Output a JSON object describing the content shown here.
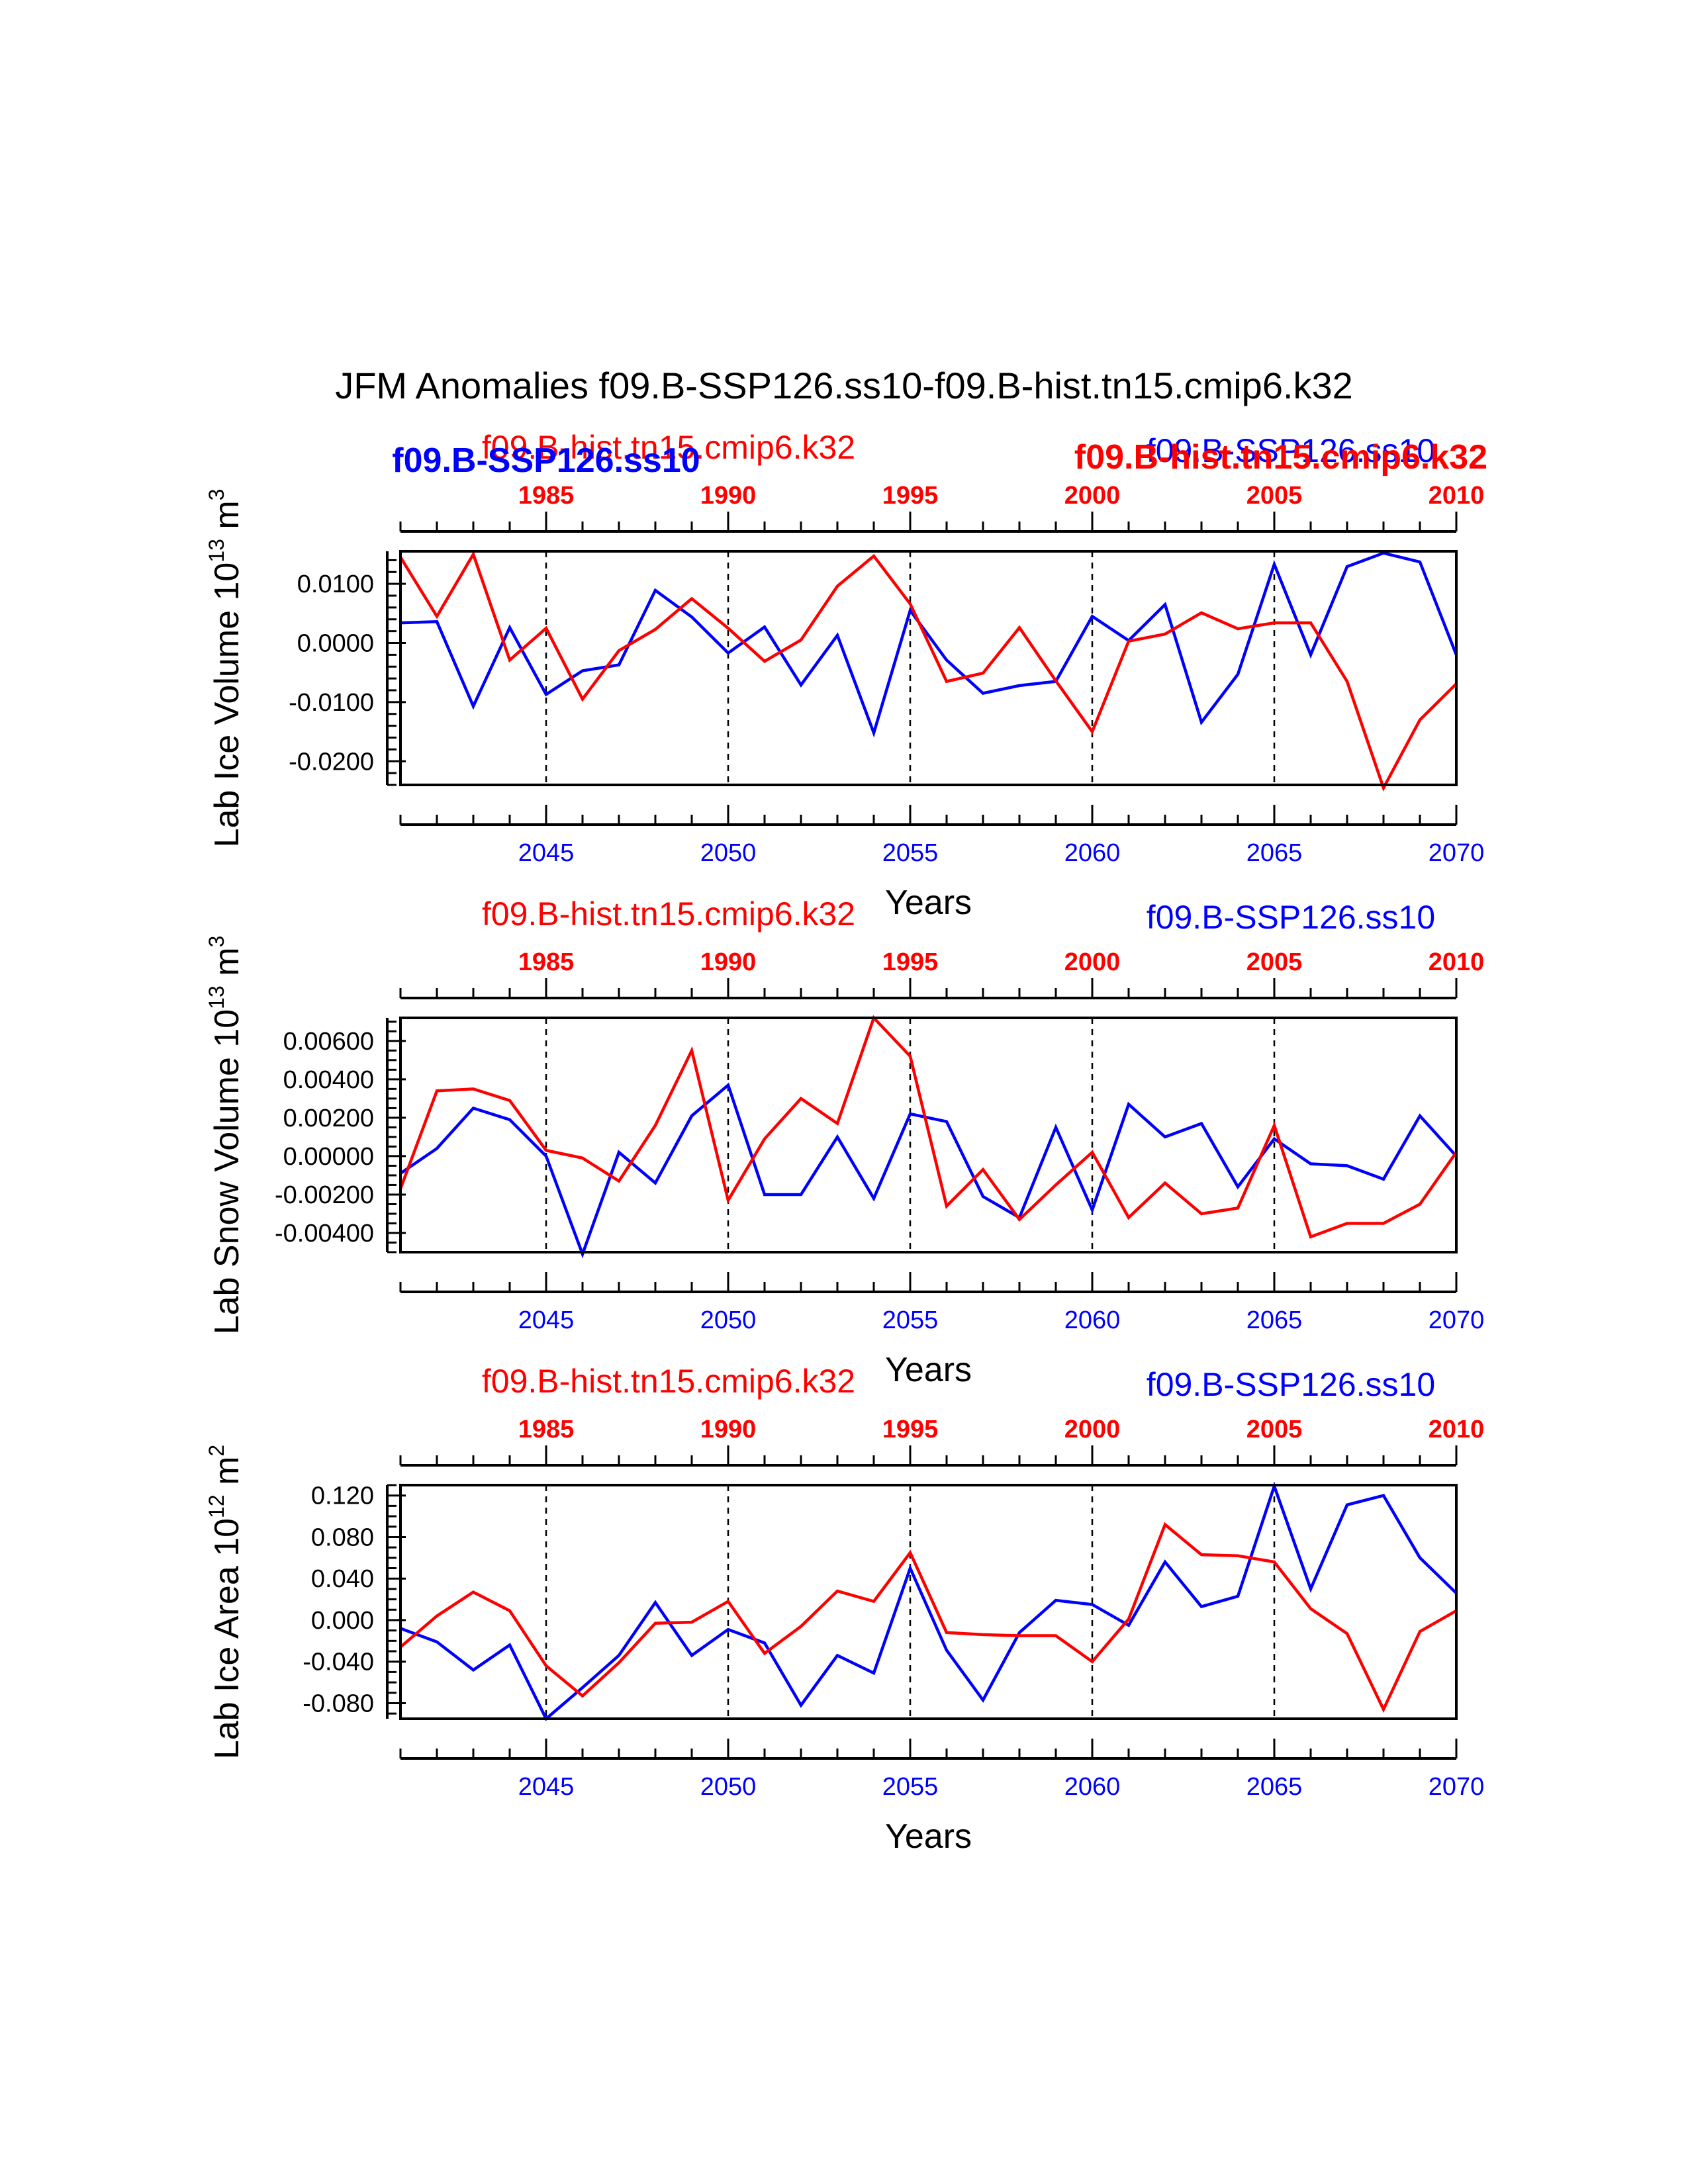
{
  "title": "JFM Anomalies f09.B-SSP126.ss10-f09.B-hist.tn15.cmip6.k32",
  "colors": {
    "blue_run": "#0000ff",
    "red_run": "#ff0000",
    "axes": "#000000"
  },
  "runs": {
    "blue": "f09.B-SSP126.ss10",
    "red": "f09.B-hist.tn15.cmip6.k32"
  },
  "chart_data": [
    {
      "type": "line",
      "ylabel_main": "Lab Ice Volume 10",
      "ylabel_exp": "13",
      "ylabel_unit": "m",
      "ylabel_unit_exp": "3",
      "xlabel": "Years",
      "ylim": [
        -0.024,
        0.0155
      ],
      "yticks": [
        -0.02,
        -0.01,
        0.0,
        0.01
      ],
      "ytick_labels": [
        "-0.0200",
        "-0.0100",
        "0.0000",
        "0.0100"
      ],
      "yminor": 0.002,
      "bottom_axis": {
        "range": [
          2041,
          2070
        ],
        "ticks": [
          2045,
          2050,
          2055,
          2060,
          2065,
          2070
        ]
      },
      "top_axis": {
        "range": [
          1981,
          2010
        ],
        "ticks": [
          1985,
          1990,
          1995,
          2000,
          2005,
          2010
        ]
      },
      "grid_dashed_x": [
        2045,
        2050,
        2055,
        2060,
        2065
      ],
      "legend": {
        "red_label": "f09.B-hist.tn15.cmip6.k32",
        "blue_label": "f09.B-SSP126.ss10",
        "red_bold": "f09.B-hist.tn15.cmip6.k32",
        "blue_bold": "f09.B-SSP126.ss10"
      },
      "series": [
        {
          "name": "f09.B-SSP126.ss10",
          "color": "#0000ff",
          "axis": "bottom",
          "x": [
            2041,
            2042,
            2043,
            2044,
            2045,
            2046,
            2047,
            2048,
            2049,
            2050,
            2051,
            2052,
            2053,
            2054,
            2055,
            2056,
            2057,
            2058,
            2059,
            2060,
            2061,
            2062,
            2063,
            2064,
            2065,
            2066,
            2067,
            2068,
            2069,
            2070
          ],
          "values": [
            0.0034,
            0.0036,
            -0.0107,
            0.0026,
            -0.0087,
            -0.0047,
            -0.0037,
            0.0089,
            0.0044,
            -0.0017,
            0.0027,
            -0.0071,
            0.0013,
            -0.0152,
            0.0055,
            -0.0029,
            -0.0085,
            -0.0072,
            -0.0065,
            0.0045,
            0.0004,
            0.0065,
            -0.0134,
            -0.0053,
            0.0133,
            -0.002,
            0.0129,
            0.0152,
            0.0137,
            -0.002
          ]
        },
        {
          "name": "f09.B-hist.tn15.cmip6.k32",
          "color": "#ff0000",
          "axis": "top",
          "x": [
            1981,
            1982,
            1983,
            1984,
            1985,
            1986,
            1987,
            1988,
            1989,
            1990,
            1991,
            1992,
            1993,
            1994,
            1995,
            1996,
            1997,
            1998,
            1999,
            2000,
            2001,
            2002,
            2003,
            2004,
            2005,
            2006,
            2007,
            2008,
            2009,
            2010
          ],
          "values": [
            0.0145,
            0.0045,
            0.015,
            -0.0029,
            0.0025,
            -0.0095,
            -0.0013,
            0.0023,
            0.0075,
            0.0025,
            -0.0031,
            0.0005,
            0.0096,
            0.0147,
            0.0066,
            -0.0065,
            -0.0051,
            0.0026,
            -0.0064,
            -0.015,
            0.0003,
            0.0015,
            0.0051,
            0.0024,
            0.0034,
            0.0034,
            -0.0065,
            -0.0245,
            -0.013,
            -0.0069
          ]
        }
      ]
    },
    {
      "type": "line",
      "ylabel_main": "Lab Snow Volume 10",
      "ylabel_exp": "13",
      "ylabel_unit": "m",
      "ylabel_unit_exp": "3",
      "xlabel": "Years",
      "ylim": [
        -0.005,
        0.0072
      ],
      "yticks": [
        -0.004,
        -0.002,
        0.0,
        0.002,
        0.004,
        0.006
      ],
      "ytick_labels": [
        "-0.00400",
        "-0.00200",
        "0.00000",
        "0.00200",
        "0.00400",
        "0.00600"
      ],
      "yminor": 0.0005,
      "bottom_axis": {
        "range": [
          2041,
          2070
        ],
        "ticks": [
          2045,
          2050,
          2055,
          2060,
          2065,
          2070
        ]
      },
      "top_axis": {
        "range": [
          1981,
          2010
        ],
        "ticks": [
          1985,
          1990,
          1995,
          2000,
          2005,
          2010
        ]
      },
      "grid_dashed_x": [
        2045,
        2050,
        2055,
        2060,
        2065
      ],
      "legend": {
        "red_label": "f09.B-hist.tn15.cmip6.k32",
        "blue_label": "f09.B-SSP126.ss10"
      },
      "series": [
        {
          "name": "f09.B-SSP126.ss10",
          "color": "#0000ff",
          "axis": "bottom",
          "x": [
            2041,
            2042,
            2043,
            2044,
            2045,
            2046,
            2047,
            2048,
            2049,
            2050,
            2051,
            2052,
            2053,
            2054,
            2055,
            2056,
            2057,
            2058,
            2059,
            2060,
            2061,
            2062,
            2063,
            2064,
            2065,
            2066,
            2067,
            2068,
            2069,
            2070
          ],
          "values": [
            -0.0009,
            0.0004,
            0.0025,
            0.0019,
            0.0,
            -0.0051,
            0.0002,
            -0.0014,
            0.0021,
            0.0037,
            -0.002,
            -0.002,
            0.001,
            -0.0022,
            0.0022,
            0.0018,
            -0.0021,
            -0.0032,
            0.0015,
            -0.0028,
            0.0027,
            0.001,
            0.0017,
            -0.0016,
            0.0009,
            -0.0004,
            -0.0005,
            -0.0012,
            0.0021,
            0.0
          ]
        },
        {
          "name": "f09.B-hist.tn15.cmip6.k32",
          "color": "#ff0000",
          "axis": "top",
          "x": [
            1981,
            1982,
            1983,
            1984,
            1985,
            1986,
            1987,
            1988,
            1989,
            1990,
            1991,
            1992,
            1993,
            1994,
            1995,
            1996,
            1997,
            1998,
            1999,
            2000,
            2001,
            2002,
            2003,
            2004,
            2005,
            2006,
            2007,
            2008,
            2009,
            2010
          ],
          "values": [
            -0.0017,
            0.0034,
            0.0035,
            0.0029,
            0.0003,
            -0.0001,
            -0.0013,
            0.0016,
            0.0055,
            -0.0023,
            0.0009,
            0.003,
            0.0017,
            0.0072,
            0.0052,
            -0.0026,
            -0.0007,
            -0.0033,
            -0.0015,
            0.0002,
            -0.0032,
            -0.0014,
            -0.003,
            -0.0027,
            0.0016,
            -0.0042,
            -0.0035,
            -0.0035,
            -0.0025,
            0.0002
          ]
        }
      ]
    },
    {
      "type": "line",
      "ylabel_main": "Lab Ice Area 10",
      "ylabel_exp": "12",
      "ylabel_unit": "m",
      "ylabel_unit_exp": "2",
      "xlabel": "Years",
      "ylim": [
        -0.095,
        0.13
      ],
      "yticks": [
        -0.08,
        -0.04,
        0.0,
        0.04,
        0.08,
        0.12
      ],
      "ytick_labels": [
        "-0.080",
        "-0.040",
        "0.000",
        "0.040",
        "0.080",
        "0.120"
      ],
      "yminor": 0.01,
      "bottom_axis": {
        "range": [
          2041,
          2070
        ],
        "ticks": [
          2045,
          2050,
          2055,
          2060,
          2065,
          2070
        ]
      },
      "top_axis": {
        "range": [
          1981,
          2010
        ],
        "ticks": [
          1985,
          1990,
          1995,
          2000,
          2005,
          2010
        ]
      },
      "grid_dashed_x": [
        2045,
        2050,
        2055,
        2060,
        2065
      ],
      "legend": {
        "red_label": "f09.B-hist.tn15.cmip6.k32",
        "blue_label": "f09.B-SSP126.ss10"
      },
      "series": [
        {
          "name": "f09.B-SSP126.ss10",
          "color": "#0000ff",
          "axis": "bottom",
          "x": [
            2041,
            2042,
            2043,
            2044,
            2045,
            2046,
            2047,
            2048,
            2049,
            2050,
            2051,
            2052,
            2053,
            2054,
            2055,
            2056,
            2057,
            2058,
            2059,
            2060,
            2061,
            2062,
            2063,
            2064,
            2065,
            2066,
            2067,
            2068,
            2069,
            2070
          ],
          "values": [
            -0.008,
            -0.021,
            -0.048,
            -0.024,
            -0.095,
            -0.065,
            -0.034,
            0.017,
            -0.034,
            -0.009,
            -0.022,
            -0.082,
            -0.034,
            -0.051,
            0.05,
            -0.029,
            -0.077,
            -0.012,
            0.019,
            0.015,
            -0.005,
            0.056,
            0.013,
            0.023,
            0.129,
            0.03,
            0.111,
            0.12,
            0.06,
            0.026
          ]
        },
        {
          "name": "f09.B-hist.tn15.cmip6.k32",
          "color": "#ff0000",
          "axis": "top",
          "x": [
            1981,
            1982,
            1983,
            1984,
            1985,
            1986,
            1987,
            1988,
            1989,
            1990,
            1991,
            1992,
            1993,
            1994,
            1995,
            1996,
            1997,
            1998,
            1999,
            2000,
            2001,
            2002,
            2003,
            2004,
            2005,
            2006,
            2007,
            2008,
            2009,
            2010
          ],
          "values": [
            -0.026,
            0.004,
            0.027,
            0.009,
            -0.044,
            -0.073,
            -0.041,
            -0.003,
            -0.002,
            0.018,
            -0.032,
            -0.006,
            0.028,
            0.018,
            0.065,
            -0.012,
            -0.014,
            -0.015,
            -0.015,
            -0.04,
            0.001,
            0.092,
            0.063,
            0.062,
            0.056,
            0.011,
            -0.013,
            -0.086,
            -0.011,
            0.009
          ]
        }
      ]
    }
  ]
}
